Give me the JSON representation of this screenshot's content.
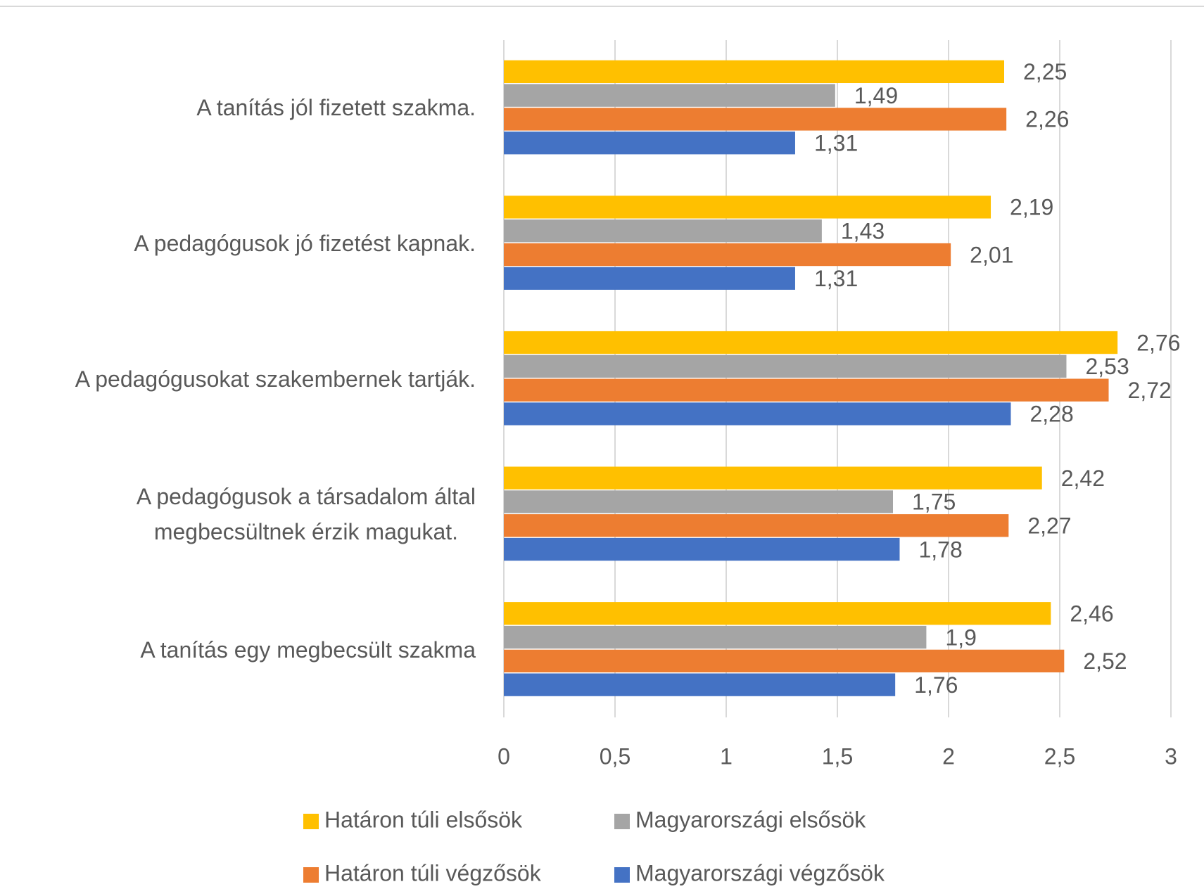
{
  "chart_data": {
    "type": "barh",
    "categories": [
      "A tanítás jól fizetett szakma.",
      "A pedagógusok jó fizetést kapnak.",
      "A pedagógusokat szakembernek tartják.",
      "A pedagógusok a társadalom által\nmegbecsültnek érzik magukat.",
      "A tanítás egy megbecsült szakma"
    ],
    "series": [
      {
        "name": "Határon túli elsősök",
        "color": "#FFC000",
        "values": [
          2.25,
          2.19,
          2.76,
          2.42,
          2.46
        ],
        "value_labels": [
          "2,25",
          "2,19",
          "2,76",
          "2,42",
          "2,46"
        ]
      },
      {
        "name": "Magyarországi elsősök",
        "color": "#A5A5A5",
        "values": [
          1.49,
          1.43,
          2.53,
          1.75,
          1.9
        ],
        "value_labels": [
          "1,49",
          "1,43",
          "2,53",
          "1,75",
          "1,9"
        ]
      },
      {
        "name": "Határon túli végzősök",
        "color": "#ED7D31",
        "values": [
          2.26,
          2.01,
          2.72,
          2.27,
          2.52
        ],
        "value_labels": [
          "2,26",
          "2,01",
          "2,72",
          "2,27",
          "2,52"
        ]
      },
      {
        "name": "Magyarországi végzősök",
        "color": "#4472C4",
        "values": [
          1.31,
          1.31,
          2.28,
          1.78,
          1.76
        ],
        "value_labels": [
          "1,31",
          "1,31",
          "2,28",
          "1,78",
          "1,76"
        ]
      }
    ],
    "xlim": [
      0,
      3
    ],
    "xticks": [
      0,
      {
        "value": 0.5,
        "label": "0,5"
      },
      1,
      {
        "value": 1.5,
        "label": "1,5"
      },
      2,
      {
        "value": 2.5,
        "label": "2,5"
      },
      3
    ],
    "grid": true,
    "legend": "bottom"
  }
}
